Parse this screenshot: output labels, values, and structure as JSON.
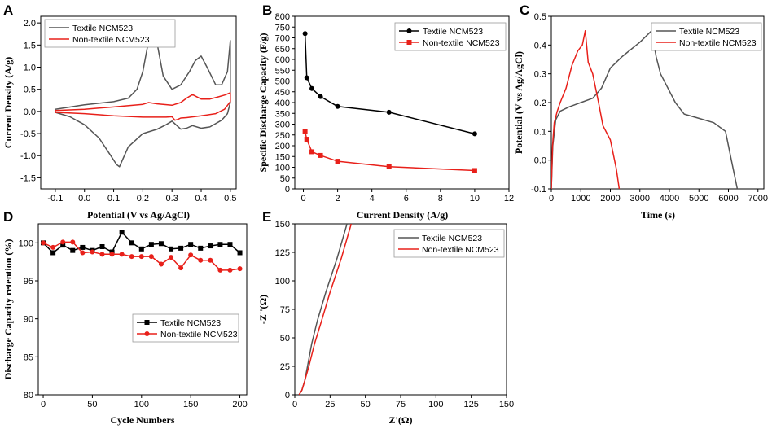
{
  "colors": {
    "textile_gray": "#555555",
    "textile_black": "#000000",
    "non_textile_red": "#e8201a"
  },
  "chart_data": [
    {
      "panel": "A",
      "type": "line",
      "xlabel": "Potential (V vs Ag/AgCl)",
      "ylabel": "Current Density (A/g)",
      "xlim": [
        -0.15,
        0.52
      ],
      "ylim": [
        -1.75,
        2.15
      ],
      "xticks": [
        -0.1,
        0.0,
        0.1,
        0.2,
        0.3,
        0.4,
        0.5
      ],
      "xtick_labels": [
        "-0.1",
        "0.0",
        "0.1",
        "0.2",
        "0.3",
        "0.4",
        "0.5"
      ],
      "yticks": [
        -1.5,
        -1.0,
        -0.5,
        0.0,
        0.5,
        1.0,
        1.5,
        2.0
      ],
      "ytick_labels": [
        "-1.5",
        "-1.0",
        "-0.5",
        "0.0",
        "0.5",
        "1.0",
        "1.5",
        "2.0"
      ],
      "legend_position": "top-left",
      "series": [
        {
          "name": "Textile NCM523",
          "color": "#555555",
          "closed": true,
          "x": [
            -0.1,
            0.0,
            0.1,
            0.15,
            0.18,
            0.2,
            0.22,
            0.235,
            0.25,
            0.27,
            0.3,
            0.33,
            0.36,
            0.38,
            0.4,
            0.42,
            0.45,
            0.47,
            0.49,
            0.5,
            0.5,
            0.49,
            0.47,
            0.43,
            0.4,
            0.37,
            0.35,
            0.33,
            0.3,
            0.28,
            0.25,
            0.2,
            0.15,
            0.13,
            0.12,
            0.11,
            0.09,
            0.05,
            0.0,
            -0.05,
            -0.1
          ],
          "y": [
            0.05,
            0.15,
            0.22,
            0.3,
            0.5,
            0.9,
            1.6,
            1.88,
            1.5,
            0.8,
            0.5,
            0.6,
            0.9,
            1.15,
            1.25,
            1.0,
            0.6,
            0.6,
            0.9,
            1.6,
            0.2,
            -0.05,
            -0.2,
            -0.35,
            -0.38,
            -0.32,
            -0.38,
            -0.4,
            -0.22,
            -0.3,
            -0.4,
            -0.5,
            -0.8,
            -1.1,
            -1.25,
            -1.2,
            -1.0,
            -0.6,
            -0.3,
            -0.12,
            -0.02
          ]
        },
        {
          "name": "Non-textile NCM523",
          "color": "#e8201a",
          "closed": true,
          "x": [
            -0.1,
            0.0,
            0.1,
            0.2,
            0.22,
            0.25,
            0.3,
            0.33,
            0.35,
            0.37,
            0.4,
            0.43,
            0.46,
            0.48,
            0.5,
            0.5,
            0.48,
            0.45,
            0.4,
            0.35,
            0.33,
            0.32,
            0.31,
            0.3,
            0.28,
            0.2,
            0.1,
            0.0,
            -0.1
          ],
          "y": [
            0.02,
            0.05,
            0.1,
            0.16,
            0.2,
            0.17,
            0.14,
            0.2,
            0.3,
            0.38,
            0.28,
            0.28,
            0.33,
            0.37,
            0.42,
            0.22,
            0.05,
            -0.05,
            -0.1,
            -0.14,
            -0.15,
            -0.18,
            -0.2,
            -0.12,
            -0.13,
            -0.13,
            -0.1,
            -0.05,
            -0.02
          ]
        }
      ]
    },
    {
      "panel": "B",
      "type": "line",
      "xlabel": "Current Density (A/g)",
      "ylabel": "Specific Discharge Capacity (F/g)",
      "xlim": [
        -0.5,
        12
      ],
      "ylim": [
        0,
        800
      ],
      "xticks": [
        0,
        2,
        4,
        6,
        8,
        10,
        12
      ],
      "xtick_labels": [
        "0",
        "2",
        "4",
        "6",
        "8",
        "10",
        "12"
      ],
      "yticks": [
        0,
        50,
        100,
        150,
        200,
        250,
        300,
        350,
        400,
        450,
        500,
        550,
        600,
        650,
        700,
        750,
        800
      ],
      "ytick_labels": [
        "0",
        "50",
        "100",
        "150",
        "200",
        "250",
        "300",
        "350",
        "400",
        "450",
        "500",
        "550",
        "600",
        "650",
        "700",
        "750",
        "800"
      ],
      "legend_position": "top-right",
      "series": [
        {
          "name": "Textile NCM523",
          "color": "#000000",
          "marker": "circle",
          "x": [
            0.1,
            0.2,
            0.5,
            1,
            2,
            5,
            10
          ],
          "y": [
            720,
            515,
            465,
            428,
            382,
            355,
            255
          ]
        },
        {
          "name": "Non-textile NCM523",
          "color": "#e8201a",
          "marker": "square",
          "x": [
            0.1,
            0.2,
            0.5,
            1,
            2,
            5,
            10
          ],
          "y": [
            265,
            230,
            172,
            155,
            128,
            103,
            85
          ]
        }
      ]
    },
    {
      "panel": "C",
      "type": "line",
      "xlabel": "Time (s)",
      "ylabel": "Potential (V vs Ag/AgCl)",
      "xlim": [
        0,
        7200
      ],
      "ylim": [
        -0.1,
        0.5
      ],
      "xticks": [
        0,
        1000,
        2000,
        3000,
        4000,
        5000,
        6000,
        7000
      ],
      "xtick_labels": [
        "0",
        "1000",
        "2000",
        "3000",
        "4000",
        "5000",
        "6000",
        "7000"
      ],
      "yticks": [
        -0.1,
        0.0,
        0.1,
        0.2,
        0.3,
        0.4,
        0.5
      ],
      "ytick_labels": [
        "-0.1",
        "0.0",
        "0.1",
        "0.2",
        "0.3",
        "0.4",
        "0.5"
      ],
      "legend_position": "top-right",
      "series": [
        {
          "name": "Textile NCM523",
          "color": "#555555",
          "x": [
            0,
            50,
            150,
            300,
            600,
            1000,
            1400,
            1700,
            2000,
            2400,
            3000,
            3400,
            3550,
            3700,
            3900,
            4200,
            4500,
            5000,
            5500,
            5900,
            6100,
            6300
          ],
          "y": [
            -0.1,
            0.05,
            0.14,
            0.17,
            0.185,
            0.2,
            0.215,
            0.25,
            0.32,
            0.36,
            0.41,
            0.45,
            0.36,
            0.3,
            0.26,
            0.2,
            0.16,
            0.145,
            0.13,
            0.1,
            0.0,
            -0.1
          ]
        },
        {
          "name": "Non-textile NCM523",
          "color": "#e8201a",
          "x": [
            0,
            40,
            100,
            200,
            300,
            500,
            700,
            900,
            1050,
            1150,
            1250,
            1400,
            1600,
            1750,
            2000,
            2200,
            2300
          ],
          "y": [
            -0.1,
            0.05,
            0.13,
            0.17,
            0.2,
            0.25,
            0.33,
            0.38,
            0.4,
            0.45,
            0.34,
            0.3,
            0.2,
            0.12,
            0.07,
            -0.03,
            -0.1
          ]
        }
      ]
    },
    {
      "panel": "D",
      "type": "line",
      "xlabel": "Cycle Numbers",
      "ylabel": "Discharge Capacity retention (%)",
      "xlim": [
        -5,
        207
      ],
      "ylim": [
        80,
        102.5
      ],
      "xticks": [
        0,
        50,
        100,
        150,
        200
      ],
      "xtick_labels": [
        "0",
        "50",
        "100",
        "150",
        "200"
      ],
      "yticks": [
        80,
        85,
        90,
        95,
        100
      ],
      "ytick_labels": [
        "80",
        "85",
        "90",
        "95",
        "100"
      ],
      "legend_position": "center-right",
      "series": [
        {
          "name": "Textile NCM523",
          "color": "#000000",
          "marker": "square",
          "x": [
            0,
            10,
            20,
            30,
            40,
            50,
            60,
            70,
            80,
            90,
            100,
            110,
            120,
            130,
            140,
            150,
            160,
            170,
            180,
            190,
            200
          ],
          "y": [
            100.0,
            98.7,
            99.7,
            99.0,
            99.4,
            99.0,
            99.5,
            98.8,
            101.4,
            100.0,
            99.2,
            99.8,
            99.9,
            99.2,
            99.3,
            99.8,
            99.3,
            99.6,
            99.8,
            99.8,
            98.7
          ]
        },
        {
          "name": "Non-textile NCM523",
          "color": "#e8201a",
          "marker": "circle",
          "x": [
            0,
            10,
            20,
            30,
            40,
            50,
            60,
            70,
            80,
            90,
            100,
            110,
            120,
            130,
            140,
            150,
            160,
            170,
            180,
            190,
            200
          ],
          "y": [
            100.0,
            99.4,
            100.1,
            100.1,
            98.7,
            98.8,
            98.5,
            98.5,
            98.5,
            98.2,
            98.2,
            98.2,
            97.2,
            98.1,
            96.7,
            98.4,
            97.7,
            97.7,
            96.4,
            96.4,
            96.6
          ]
        }
      ]
    },
    {
      "panel": "E",
      "type": "line",
      "xlabel": "Z'(Ω)",
      "ylabel": "-Z''(Ω)",
      "xlim": [
        0,
        150
      ],
      "ylim": [
        0,
        150
      ],
      "xticks": [
        0,
        25,
        50,
        75,
        100,
        125,
        150
      ],
      "xtick_labels": [
        "0",
        "25",
        "50",
        "75",
        "100",
        "125",
        "150"
      ],
      "yticks": [
        0,
        25,
        50,
        75,
        100,
        125,
        150
      ],
      "ytick_labels": [
        "0",
        "25",
        "50",
        "75",
        "100",
        "125",
        "150"
      ],
      "legend_position": "top-right",
      "series": [
        {
          "name": "Textile NCM523",
          "color": "#555555",
          "x": [
            3,
            5,
            7,
            9,
            12,
            16,
            22,
            30,
            37
          ],
          "y": [
            0,
            4,
            12,
            25,
            45,
            65,
            90,
            120,
            150
          ]
        },
        {
          "name": "Non-textile NCM523",
          "color": "#e8201a",
          "x": [
            3,
            5,
            7,
            10,
            14,
            19,
            25,
            33,
            40
          ],
          "y": [
            0,
            4,
            12,
            25,
            45,
            65,
            90,
            120,
            150
          ]
        }
      ]
    }
  ]
}
